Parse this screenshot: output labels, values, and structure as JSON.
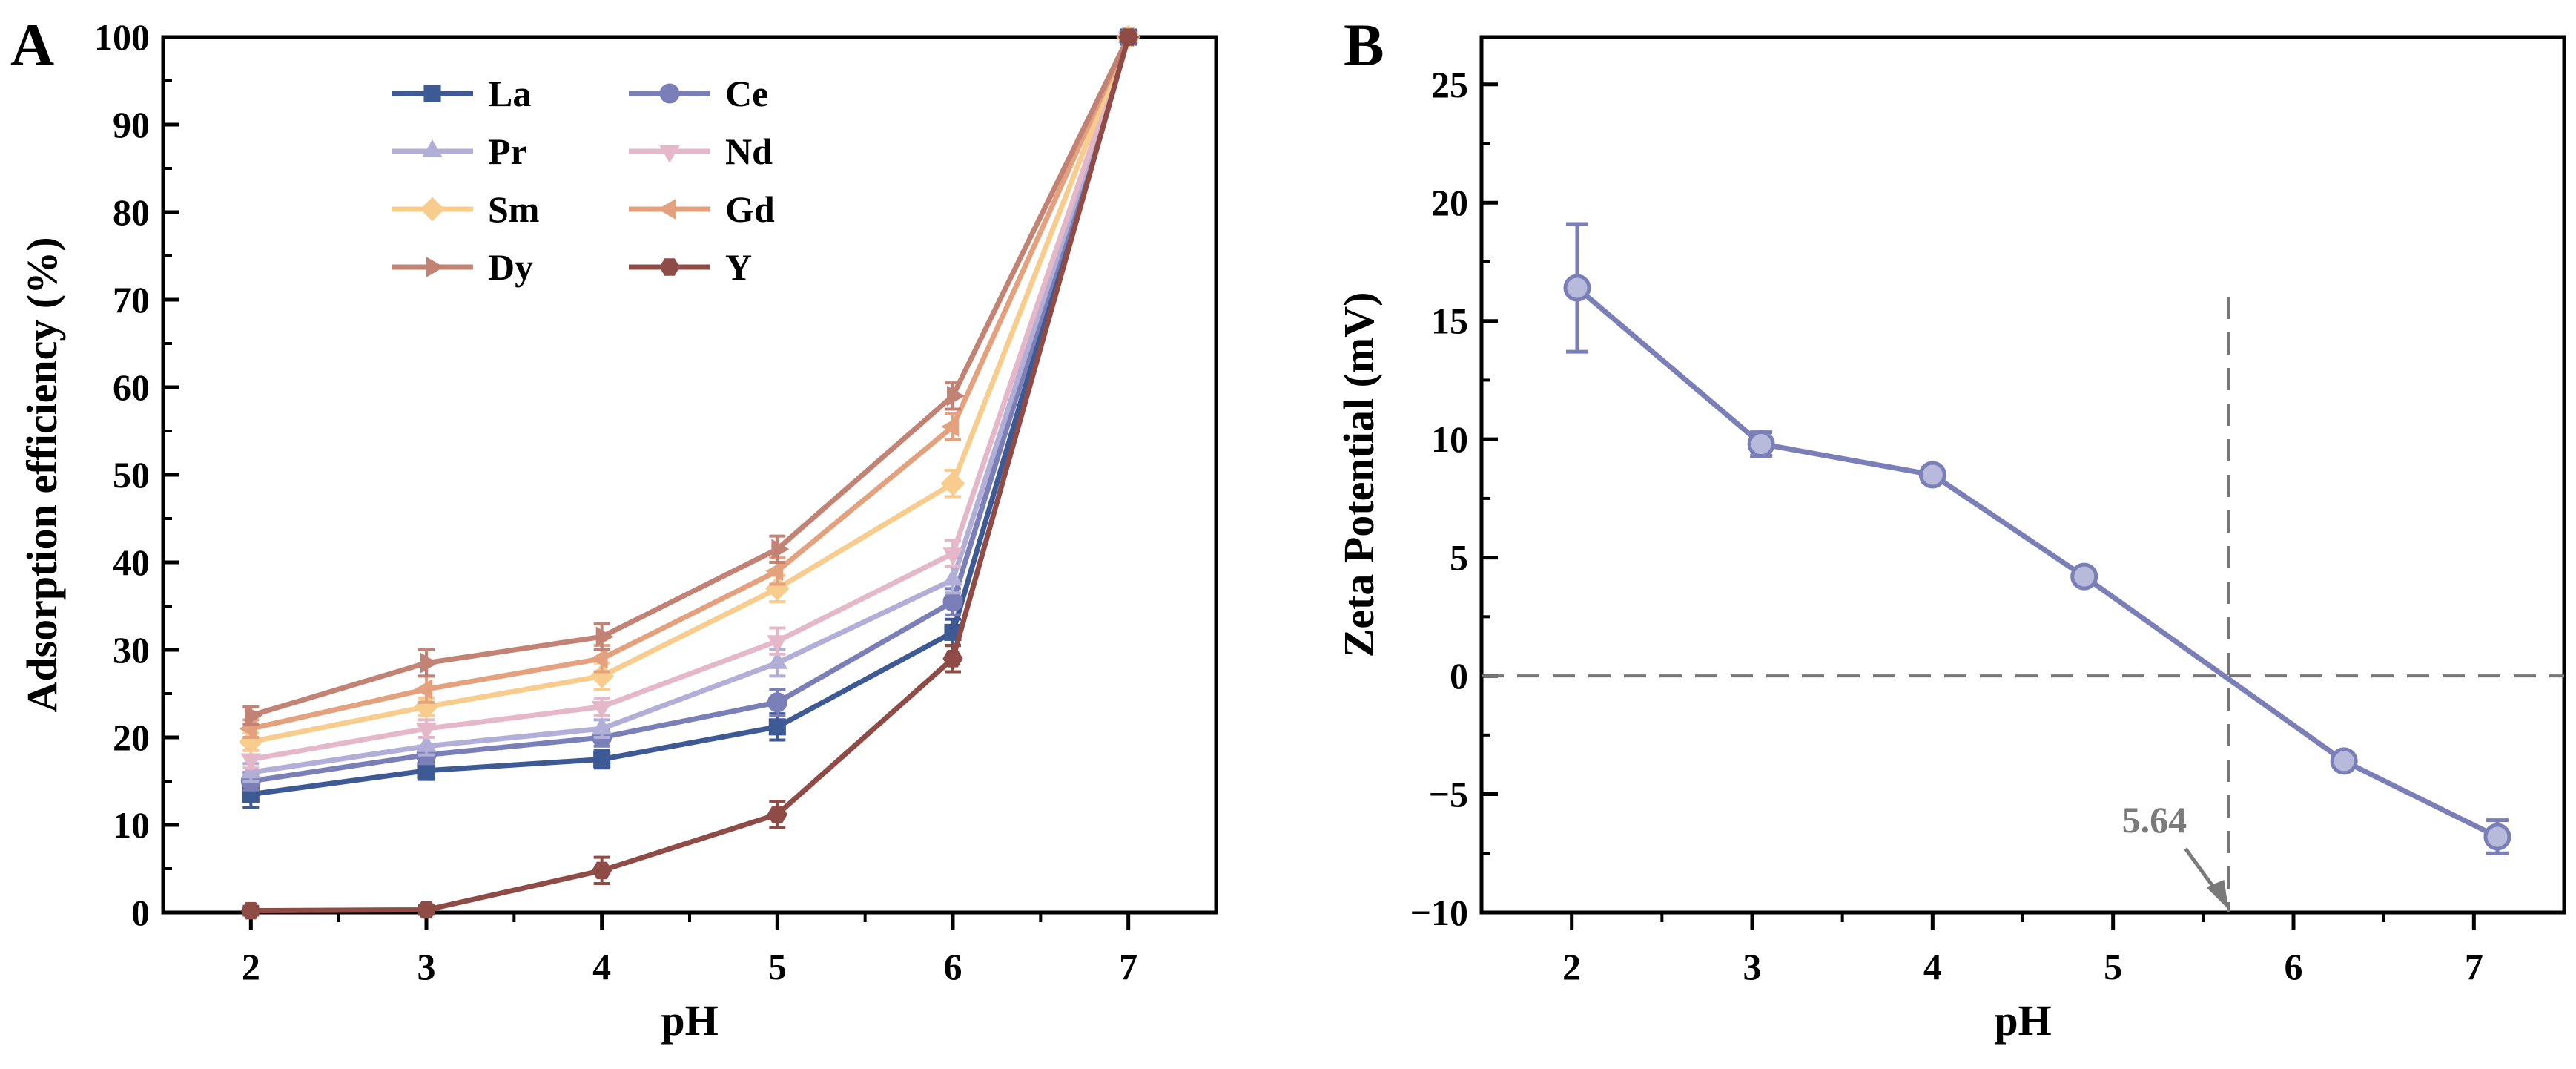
{
  "chart_data": [
    {
      "panel_label": "A",
      "type": "line",
      "xlabel": "pH",
      "ylabel": "Adsorption efficiency (%)",
      "xlim": [
        1.5,
        7.5
      ],
      "ylim": [
        0,
        100
      ],
      "xticks": [
        2,
        3,
        4,
        5,
        6,
        7
      ],
      "yticks": [
        0,
        10,
        20,
        30,
        40,
        50,
        60,
        70,
        80,
        90,
        100
      ],
      "x": [
        2,
        3,
        4,
        5,
        6,
        7
      ],
      "legend_position": "top-left",
      "series": [
        {
          "name": "La",
          "marker": "square",
          "color": "#3e5a94",
          "values": [
            13.5,
            16.2,
            17.5,
            21.2,
            32.0,
            100
          ],
          "errors": [
            1.5,
            1.0,
            1.0,
            1.5,
            1.5,
            0.5
          ]
        },
        {
          "name": "Ce",
          "marker": "circle",
          "color": "#7a7fb8",
          "values": [
            15.0,
            18.0,
            20.0,
            24.0,
            35.5,
            100
          ],
          "errors": [
            1.0,
            1.0,
            1.0,
            1.5,
            1.5,
            0.5
          ]
        },
        {
          "name": "Pr",
          "marker": "triangle-up",
          "color": "#b1aed8",
          "values": [
            16.0,
            19.0,
            21.0,
            28.5,
            38.0,
            100
          ],
          "errors": [
            1.0,
            1.0,
            1.0,
            1.5,
            1.5,
            0.5
          ]
        },
        {
          "name": "Nd",
          "marker": "triangle-down",
          "color": "#e4b8c8",
          "values": [
            17.5,
            21.0,
            23.5,
            31.0,
            41.0,
            100
          ],
          "errors": [
            1.0,
            1.0,
            1.0,
            1.5,
            1.5,
            0.5
          ]
        },
        {
          "name": "Sm",
          "marker": "diamond",
          "color": "#f7cc8c",
          "values": [
            19.5,
            23.5,
            27.0,
            37.0,
            49.0,
            100
          ],
          "errors": [
            1.0,
            1.0,
            1.5,
            1.5,
            1.5,
            0.5
          ]
        },
        {
          "name": "Gd",
          "marker": "triangle-left",
          "color": "#e4a17e",
          "values": [
            21.0,
            25.5,
            29.0,
            39.0,
            55.5,
            100
          ],
          "errors": [
            1.0,
            1.5,
            1.5,
            1.5,
            1.5,
            0.5
          ]
        },
        {
          "name": "Dy",
          "marker": "triangle-right",
          "color": "#c28274",
          "values": [
            22.5,
            28.5,
            31.5,
            41.5,
            59.0,
            100
          ],
          "errors": [
            1.0,
            1.5,
            1.5,
            1.5,
            1.5,
            0.5
          ]
        },
        {
          "name": "Y",
          "marker": "hexagon",
          "color": "#8f4b45",
          "values": [
            0.2,
            0.3,
            4.8,
            11.2,
            29.0,
            100
          ],
          "errors": [
            0.5,
            0.5,
            1.5,
            1.5,
            1.5,
            0.5
          ]
        }
      ]
    },
    {
      "panel_label": "B",
      "type": "line",
      "xlabel": "pH",
      "ylabel": "Zeta Potential (mV)",
      "xlim": [
        1.5,
        7.5
      ],
      "ylim": [
        -10,
        27
      ],
      "xticks": [
        2,
        3,
        4,
        5,
        6,
        7
      ],
      "yticks": [
        -10,
        -5,
        0,
        5,
        10,
        15,
        20,
        25
      ],
      "ytick_labels": [
        "−10",
        "−5",
        "0",
        "5",
        "10",
        "15",
        "20",
        "25"
      ],
      "series": [
        {
          "name": "Zeta Potential",
          "marker": "circle",
          "color": "#7a7fb8",
          "x": [
            2.03,
            3.05,
            4.0,
            4.84,
            6.28,
            7.13
          ],
          "values": [
            16.4,
            9.8,
            8.5,
            4.2,
            -3.6,
            -6.8
          ],
          "errors": [
            2.7,
            0.5,
            0.3,
            0.3,
            0.2,
            0.7
          ]
        }
      ],
      "reference_lines": {
        "horizontal_y": 0,
        "vertical_x": 5.64
      },
      "annotation": {
        "text": "5.64",
        "points_to_x": 5.64,
        "points_to_y": -10
      }
    }
  ]
}
